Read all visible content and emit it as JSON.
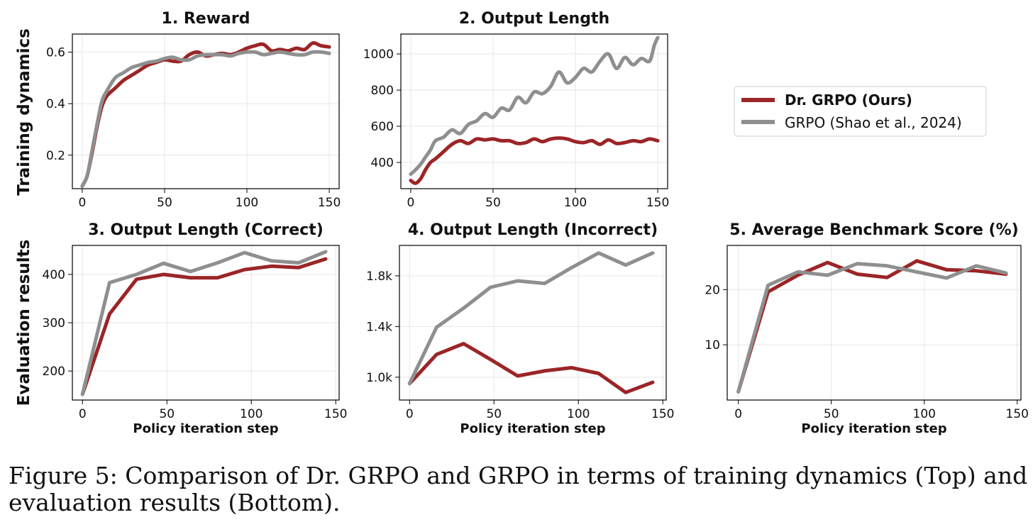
{
  "row_labels": [
    "Training dynamics",
    "Evaluation results"
  ],
  "legend": [
    {
      "label": "Dr. GRPO (Ours)",
      "color": "#9b2527",
      "bold": true
    },
    {
      "label": "GRPO (Shao et al., 2024)",
      "color": "#8f8f8f",
      "bold": false
    }
  ],
  "caption": "Figure 5: Comparison of Dr. GRPO and GRPO in terms of training dynamics (Top) and evaluation results (Bottom).",
  "chart_data": [
    {
      "type": "line",
      "title": "1. Reward",
      "xlabel": "",
      "ylabel": "Training dynamics",
      "xlim": [
        -6,
        156
      ],
      "ylim": [
        0.07,
        0.67
      ],
      "xticks": [
        0,
        50,
        100,
        150
      ],
      "yticks": [
        0.2,
        0.4,
        0.6
      ],
      "ytick_labels": [
        "0.2",
        "0.4",
        "0.6"
      ],
      "series": [
        {
          "name": "Dr. GRPO (Ours)",
          "x": [
            0,
            3,
            6,
            9,
            12,
            15,
            20,
            25,
            30,
            35,
            40,
            45,
            50,
            55,
            60,
            65,
            70,
            75,
            80,
            85,
            90,
            95,
            100,
            105,
            110,
            115,
            120,
            125,
            130,
            135,
            140,
            145,
            150
          ],
          "y": [
            0.08,
            0.12,
            0.21,
            0.31,
            0.39,
            0.43,
            0.46,
            0.49,
            0.51,
            0.53,
            0.55,
            0.56,
            0.57,
            0.565,
            0.565,
            0.59,
            0.6,
            0.585,
            0.59,
            0.595,
            0.59,
            0.6,
            0.615,
            0.625,
            0.63,
            0.605,
            0.61,
            0.605,
            0.615,
            0.61,
            0.635,
            0.625,
            0.62
          ]
        },
        {
          "name": "GRPO (Shao et al., 2024)",
          "x": [
            0,
            3,
            6,
            9,
            12,
            15,
            20,
            25,
            30,
            35,
            40,
            45,
            50,
            55,
            60,
            65,
            70,
            75,
            80,
            85,
            90,
            95,
            100,
            105,
            110,
            115,
            120,
            125,
            130,
            135,
            140,
            145,
            150
          ],
          "y": [
            0.08,
            0.12,
            0.22,
            0.32,
            0.41,
            0.45,
            0.5,
            0.52,
            0.54,
            0.55,
            0.56,
            0.565,
            0.575,
            0.58,
            0.57,
            0.57,
            0.585,
            0.59,
            0.59,
            0.59,
            0.585,
            0.595,
            0.6,
            0.6,
            0.59,
            0.595,
            0.6,
            0.595,
            0.59,
            0.59,
            0.6,
            0.6,
            0.595
          ]
        }
      ]
    },
    {
      "type": "line",
      "title": "2. Output Length",
      "xlabel": "",
      "ylabel": "",
      "xlim": [
        -6,
        156
      ],
      "ylim": [
        255,
        1110
      ],
      "xticks": [
        0,
        50,
        100,
        150
      ],
      "yticks": [
        400,
        600,
        800,
        1000
      ],
      "ytick_labels": [
        "400",
        "600",
        "800",
        "1000"
      ],
      "series": [
        {
          "name": "Dr. GRPO (Ours)",
          "x": [
            0,
            3,
            6,
            9,
            12,
            15,
            20,
            25,
            30,
            35,
            40,
            45,
            50,
            55,
            60,
            65,
            70,
            75,
            80,
            85,
            90,
            95,
            100,
            105,
            110,
            115,
            120,
            125,
            130,
            135,
            140,
            145,
            150
          ],
          "y": [
            300,
            285,
            310,
            360,
            400,
            420,
            460,
            500,
            520,
            505,
            530,
            525,
            530,
            520,
            520,
            505,
            510,
            530,
            515,
            530,
            535,
            530,
            515,
            510,
            520,
            500,
            525,
            505,
            510,
            520,
            515,
            530,
            520
          ]
        },
        {
          "name": "GRPO (Shao et al., 2024)",
          "x": [
            0,
            3,
            6,
            9,
            12,
            15,
            20,
            25,
            30,
            35,
            40,
            45,
            50,
            55,
            60,
            65,
            70,
            75,
            80,
            85,
            90,
            95,
            100,
            105,
            110,
            115,
            120,
            125,
            130,
            135,
            140,
            145,
            148,
            150
          ],
          "y": [
            335,
            360,
            390,
            430,
            470,
            520,
            540,
            580,
            560,
            610,
            630,
            670,
            650,
            700,
            690,
            760,
            730,
            790,
            780,
            820,
            900,
            840,
            870,
            920,
            900,
            960,
            1000,
            920,
            980,
            940,
            975,
            960,
            1050,
            1090
          ]
        }
      ]
    },
    {
      "type": "line",
      "title": "3. Output Length (Correct)",
      "xlabel": "Policy iteration step",
      "ylabel": "Evaluation results",
      "xlim": [
        -6,
        152
      ],
      "ylim": [
        140,
        460
      ],
      "xticks": [
        0,
        50,
        100,
        150
      ],
      "yticks": [
        200,
        300,
        400
      ],
      "ytick_labels": [
        "200",
        "300",
        "400"
      ],
      "series": [
        {
          "name": "Dr. GRPO (Ours)",
          "x": [
            0,
            16,
            32,
            48,
            64,
            80,
            96,
            112,
            128,
            144
          ],
          "y": [
            152,
            318,
            390,
            400,
            393,
            393,
            410,
            417,
            414,
            432
          ]
        },
        {
          "name": "GRPO (Shao et al., 2024)",
          "x": [
            0,
            16,
            32,
            48,
            64,
            80,
            96,
            112,
            128,
            144
          ],
          "y": [
            152,
            383,
            400,
            423,
            406,
            424,
            445,
            428,
            424,
            447
          ]
        }
      ]
    },
    {
      "type": "line",
      "title": "4. Output Length (Incorrect)",
      "xlabel": "Policy iteration step",
      "ylabel": "",
      "xlim": [
        -6,
        152
      ],
      "ylim": [
        820,
        2040
      ],
      "xticks": [
        0,
        50,
        100,
        150
      ],
      "yticks": [
        1000,
        1400,
        1800
      ],
      "ytick_labels": [
        "1.0k",
        "1.4k",
        "1.8k"
      ],
      "series": [
        {
          "name": "Dr. GRPO (Ours)",
          "x": [
            0,
            16,
            32,
            48,
            64,
            80,
            96,
            112,
            128,
            144
          ],
          "y": [
            950,
            1180,
            1265,
            1140,
            1010,
            1050,
            1075,
            1030,
            880,
            960
          ]
        },
        {
          "name": "GRPO (Shao et al., 2024)",
          "x": [
            0,
            16,
            32,
            48,
            64,
            80,
            96,
            112,
            128,
            144
          ],
          "y": [
            950,
            1395,
            1545,
            1710,
            1760,
            1740,
            1865,
            1980,
            1885,
            1980
          ]
        }
      ]
    },
    {
      "type": "line",
      "title": "5. Average Benchmark Score (%)",
      "xlabel": "Policy iteration step",
      "ylabel": "",
      "xlim": [
        -6,
        152
      ],
      "ylim": [
        0,
        28
      ],
      "xticks": [
        0,
        50,
        100,
        150
      ],
      "yticks": [
        10,
        20
      ],
      "ytick_labels": [
        "10",
        "20"
      ],
      "series": [
        {
          "name": "Dr. GRPO (Ours)",
          "x": [
            0,
            16,
            32,
            48,
            64,
            80,
            96,
            112,
            128,
            144
          ],
          "y": [
            1.5,
            19.6,
            22.6,
            24.9,
            22.8,
            22.2,
            25.2,
            23.6,
            23.4,
            22.8
          ]
        },
        {
          "name": "GRPO (Shao et al., 2024)",
          "x": [
            0,
            16,
            32,
            48,
            64,
            80,
            96,
            112,
            128,
            144
          ],
          "y": [
            1.5,
            20.8,
            23.2,
            22.6,
            24.7,
            24.3,
            23.2,
            22.1,
            24.3,
            23.0
          ]
        }
      ]
    }
  ]
}
